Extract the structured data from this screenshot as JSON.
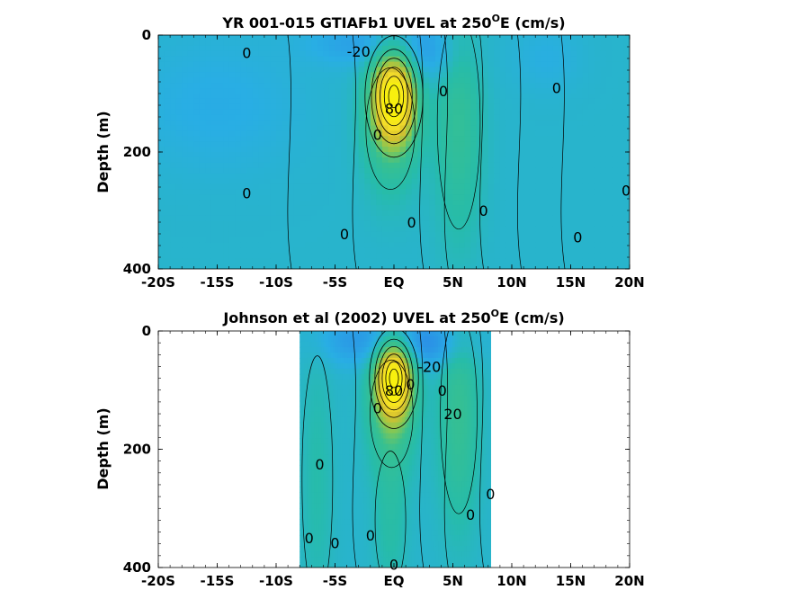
{
  "chart_data": [
    {
      "type": "heatmap",
      "title": "YR 001-015 GTIAFb1 UVEL at 250",
      "title_sup": "O",
      "title_suffix": "E (cm/s)",
      "ylabel": "Depth (m)",
      "xlim": [
        -20,
        20
      ],
      "ylim": [
        0,
        400
      ],
      "y_reversed": true,
      "x_ticks": [
        -20,
        -15,
        -10,
        -5,
        0,
        5,
        10,
        15,
        20
      ],
      "x_tick_labels": [
        "-20S",
        "-15S",
        "-10S",
        "-5S",
        "EQ",
        "5N",
        "10N",
        "15N",
        "20N"
      ],
      "y_ticks": [
        0,
        200,
        400
      ],
      "y_tick_labels": [
        "0",
        "200",
        "400"
      ],
      "data_extent_x": [
        -20,
        20
      ],
      "grid": false,
      "colormap": [
        "#2c3cc8",
        "#2b8fe6",
        "#29aee4",
        "#27bca9",
        "#38c08f",
        "#8cc84f",
        "#d4c02f",
        "#f3dc2a",
        "#f8f00e"
      ],
      "value_range": [
        -40,
        100
      ],
      "features": [
        {
          "lat": 0,
          "depth": 105,
          "wx": 1.3,
          "wy": 55,
          "amp": 95
        },
        {
          "lat": -0.3,
          "depth": 160,
          "wx": 1.6,
          "wy": 80,
          "amp": 25
        },
        {
          "lat": 5.5,
          "depth": 150,
          "wx": 1.4,
          "wy": 140,
          "amp": 22
        },
        {
          "lat": 2.5,
          "depth": 30,
          "wx": 2.5,
          "wy": 40,
          "amp": -18
        },
        {
          "lat": -3,
          "depth": 15,
          "wx": 3.0,
          "wy": 25,
          "amp": -14
        },
        {
          "lat": -15,
          "depth": 120,
          "wx": 5.0,
          "wy": 80,
          "amp": -8
        },
        {
          "lat": 13,
          "depth": 40,
          "wx": 2.0,
          "wy": 40,
          "amp": -6
        }
      ],
      "contour_labels": [
        {
          "text": "-20",
          "lat": -3,
          "depth": 28
        },
        {
          "text": "0",
          "lat": -12.5,
          "depth": 30
        },
        {
          "text": "0",
          "lat": 4.2,
          "depth": 95
        },
        {
          "text": "0",
          "lat": 13.8,
          "depth": 90
        },
        {
          "text": "0",
          "lat": -1.4,
          "depth": 170
        },
        {
          "text": "0",
          "lat": -12.5,
          "depth": 270
        },
        {
          "text": "0",
          "lat": 1.5,
          "depth": 320
        },
        {
          "text": "0",
          "lat": 7.6,
          "depth": 300
        },
        {
          "text": "0",
          "lat": -4.2,
          "depth": 340
        },
        {
          "text": "0",
          "lat": 15.6,
          "depth": 345
        },
        {
          "text": "0",
          "lat": 19.7,
          "depth": 265
        },
        {
          "text": "80",
          "lat": 0,
          "depth": 125
        }
      ]
    },
    {
      "type": "heatmap",
      "title": "Johnson et al (2002) UVEL at 250",
      "title_sup": "O",
      "title_suffix": "E (cm/s)",
      "ylabel": "Depth (m)",
      "xlim": [
        -20,
        20
      ],
      "ylim": [
        0,
        400
      ],
      "y_reversed": true,
      "x_ticks": [
        -20,
        -15,
        -10,
        -5,
        0,
        5,
        10,
        15,
        20
      ],
      "x_tick_labels": [
        "-20S",
        "-15S",
        "-10S",
        "-5S",
        "EQ",
        "5N",
        "10N",
        "15N",
        "20N"
      ],
      "y_ticks": [
        0,
        200,
        400
      ],
      "y_tick_labels": [
        "0",
        "200",
        "400"
      ],
      "data_extent_x": [
        -8,
        8.2
      ],
      "grid": false,
      "colormap": [
        "#2c3cc8",
        "#2b8fe6",
        "#29aee4",
        "#27bca9",
        "#38c08f",
        "#8cc84f",
        "#d4c02f",
        "#f3dc2a",
        "#f8f00e"
      ],
      "value_range": [
        -40,
        100
      ],
      "features": [
        {
          "lat": 0,
          "depth": 80,
          "wx": 1.1,
          "wy": 45,
          "amp": 95
        },
        {
          "lat": -0.2,
          "depth": 140,
          "wx": 1.4,
          "wy": 70,
          "amp": 30
        },
        {
          "lat": 5.5,
          "depth": 140,
          "wx": 1.2,
          "wy": 130,
          "amp": 25
        },
        {
          "lat": 3,
          "depth": 20,
          "wx": 2.5,
          "wy": 30,
          "amp": -25
        },
        {
          "lat": -3,
          "depth": 15,
          "wx": 2.5,
          "wy": 30,
          "amp": -18
        },
        {
          "lat": -6.5,
          "depth": 250,
          "wx": 1.0,
          "wy": 160,
          "amp": 10
        },
        {
          "lat": -0.3,
          "depth": 320,
          "wx": 1.0,
          "wy": 90,
          "amp": 12
        }
      ],
      "contour_labels": [
        {
          "text": "-20",
          "lat": 3,
          "depth": 60
        },
        {
          "text": "0",
          "lat": 1.4,
          "depth": 90
        },
        {
          "text": "0",
          "lat": 4.1,
          "depth": 100
        },
        {
          "text": "0",
          "lat": -1.4,
          "depth": 130
        },
        {
          "text": "20",
          "lat": 5,
          "depth": 140
        },
        {
          "text": "0",
          "lat": -6.3,
          "depth": 225
        },
        {
          "text": "0",
          "lat": 8.2,
          "depth": 275
        },
        {
          "text": "0",
          "lat": 6.5,
          "depth": 310
        },
        {
          "text": "0",
          "lat": -2,
          "depth": 345
        },
        {
          "text": "0",
          "lat": -5,
          "depth": 358
        },
        {
          "text": "0",
          "lat": -7.2,
          "depth": 350
        },
        {
          "text": "0",
          "lat": 0,
          "depth": 395
        },
        {
          "text": "80",
          "lat": 0,
          "depth": 100
        }
      ]
    }
  ]
}
